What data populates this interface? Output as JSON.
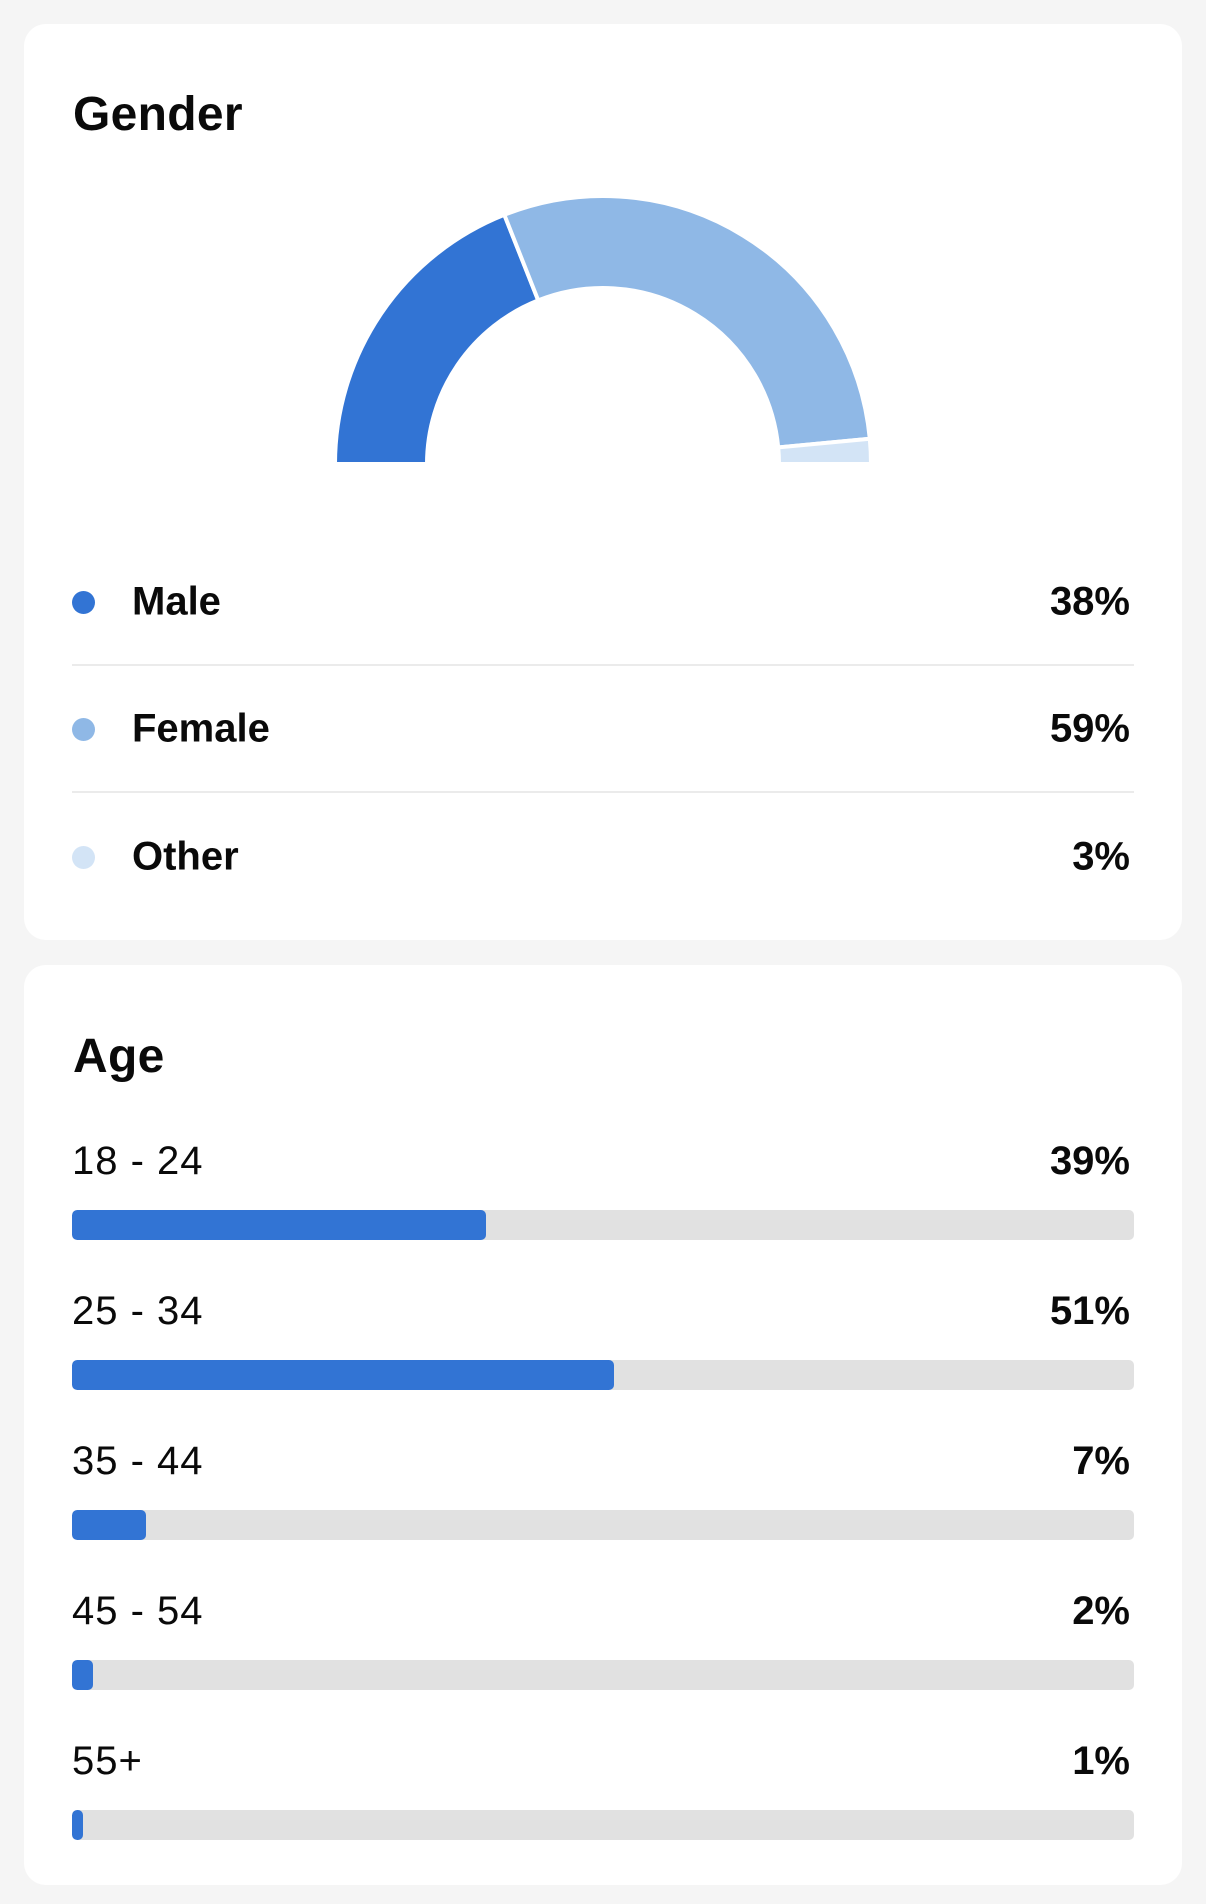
{
  "gender": {
    "title": "Gender",
    "items": [
      {
        "label": "Male",
        "value_label": "38%",
        "color": "#3274d4"
      },
      {
        "label": "Female",
        "value_label": "59%",
        "color": "#8fb8e6"
      },
      {
        "label": "Other",
        "value_label": "3%",
        "color": "#d3e4f6"
      }
    ]
  },
  "age": {
    "title": "Age",
    "items": [
      {
        "label": "18 - 24",
        "value_label": "39%"
      },
      {
        "label": "25 - 34",
        "value_label": "51%"
      },
      {
        "label": "35 - 44",
        "value_label": "7%"
      },
      {
        "label": "45 - 54",
        "value_label": "2%"
      },
      {
        "label": "55+",
        "value_label": "1%"
      }
    ],
    "bar_color": "#3274d4",
    "track_color": "#e1e1e1"
  },
  "chart_data": [
    {
      "type": "pie",
      "style": "half-donut",
      "title": "Gender",
      "categories": [
        "Male",
        "Female",
        "Other"
      ],
      "values": [
        38,
        59,
        3
      ],
      "colors": [
        "#3274d4",
        "#8fb8e6",
        "#d3e4f6"
      ]
    },
    {
      "type": "bar",
      "orientation": "horizontal",
      "title": "Age",
      "categories": [
        "18 - 24",
        "25 - 34",
        "35 - 44",
        "45 - 54",
        "55+"
      ],
      "values": [
        39,
        51,
        7,
        2,
        1
      ],
      "xlim": [
        0,
        100
      ]
    }
  ]
}
